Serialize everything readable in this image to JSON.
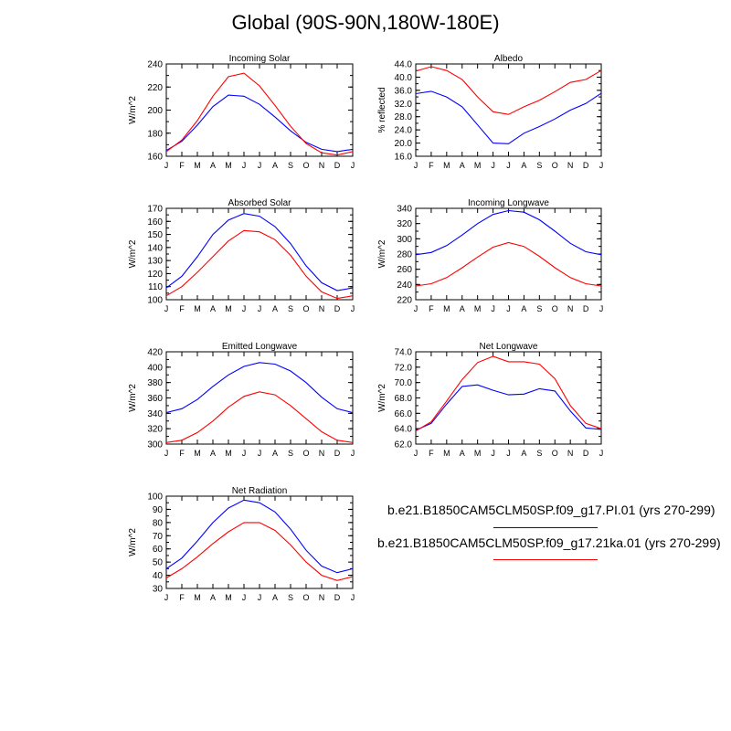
{
  "figure": {
    "title": "Global (90S-90N,180W-180E)"
  },
  "colors": {
    "case1": "#0000ff",
    "case2": "#ff0000"
  },
  "legend": {
    "items": [
      {
        "label": "b.e21.B1850CAM5CLM50SP.f09_g17.PI.01 (yrs 270-299)",
        "color": "#0000ff"
      },
      {
        "label": "b.e21.B1850CAM5CLM50SP.f09_g17.21ka.01 (yrs 270-299)",
        "color": "#ff0000"
      }
    ]
  },
  "chart_data": [
    {
      "type": "line",
      "title": "Incoming Solar",
      "ylabel": "W/m^2",
      "ylim": [
        160,
        240
      ],
      "yticks": [
        "160",
        "180",
        "200",
        "220",
        "240"
      ],
      "yminor": 10,
      "x": [
        "J",
        "F",
        "M",
        "A",
        "M",
        "J",
        "J",
        "A",
        "S",
        "O",
        "N",
        "D",
        "J"
      ],
      "series": [
        {
          "name": "b.e21.B1850CAM5CLM50SP.f09_g17.PI.01 (yrs 270-299)",
          "color": "#0000ff",
          "values": [
            165,
            173,
            187,
            203,
            213,
            212,
            205,
            194,
            182,
            172,
            166,
            164,
            166
          ]
        },
        {
          "name": "b.e21.B1850CAM5CLM50SP.f09_g17.21ka.01 (yrs 270-299)",
          "color": "#ff0000",
          "values": [
            164,
            174,
            191,
            212,
            229,
            232,
            221,
            204,
            186,
            171,
            163,
            161,
            164
          ]
        }
      ]
    },
    {
      "type": "line",
      "title": "Albedo",
      "ylabel": "% reflected",
      "ylim": [
        16,
        44
      ],
      "yticks": [
        "16.0",
        "20.0",
        "24.0",
        "28.0",
        "32.0",
        "36.0",
        "40.0",
        "44.0"
      ],
      "yminor": 2,
      "x": [
        "J",
        "F",
        "M",
        "A",
        "M",
        "J",
        "J",
        "A",
        "S",
        "O",
        "N",
        "D",
        "J"
      ],
      "series": [
        {
          "name": "b.e21.B1850CAM5CLM50SP.f09_g17.PI.01 (yrs 270-299)",
          "color": "#0000ff",
          "values": [
            35.0,
            35.7,
            34.0,
            31.0,
            25.5,
            20.0,
            19.8,
            23.0,
            25.0,
            27.3,
            30.0,
            32.0,
            35.1
          ]
        },
        {
          "name": "b.e21.B1850CAM5CLM50SP.f09_g17.21ka.01 (yrs 270-299)",
          "color": "#ff0000",
          "values": [
            41.8,
            43.2,
            42.0,
            39.3,
            34.0,
            29.5,
            28.7,
            31.0,
            33.0,
            35.6,
            38.4,
            39.3,
            42.0
          ]
        }
      ]
    },
    {
      "type": "line",
      "title": "Absorbed Solar",
      "ylabel": "W/m^2",
      "ylim": [
        100,
        170
      ],
      "yticks": [
        "100",
        "110",
        "120",
        "130",
        "140",
        "150",
        "160",
        "170"
      ],
      "yminor": 5,
      "x": [
        "J",
        "F",
        "M",
        "A",
        "M",
        "J",
        "J",
        "A",
        "S",
        "O",
        "N",
        "D",
        "J"
      ],
      "series": [
        {
          "name": "b.e21.B1850CAM5CLM50SP.f09_g17.PI.01 (yrs 270-299)",
          "color": "#0000ff",
          "values": [
            109,
            118,
            133,
            150,
            161,
            166,
            164,
            156,
            143,
            126,
            113,
            107,
            109
          ]
        },
        {
          "name": "b.e21.B1850CAM5CLM50SP.f09_g17.21ka.01 (yrs 270-299)",
          "color": "#ff0000",
          "values": [
            103,
            110,
            121,
            133,
            145,
            153,
            152,
            146,
            134,
            118,
            106,
            101,
            103
          ]
        }
      ]
    },
    {
      "type": "line",
      "title": "Incoming Longwave",
      "ylabel": "W/m^2",
      "ylim": [
        220,
        340
      ],
      "yticks": [
        "220",
        "240",
        "260",
        "280",
        "300",
        "320",
        "340"
      ],
      "yminor": 10,
      "x": [
        "J",
        "F",
        "M",
        "A",
        "M",
        "J",
        "J",
        "A",
        "S",
        "O",
        "N",
        "D",
        "J"
      ],
      "series": [
        {
          "name": "b.e21.B1850CAM5CLM50SP.f09_g17.PI.01 (yrs 270-299)",
          "color": "#0000ff",
          "values": [
            279,
            282,
            291,
            305,
            320,
            332,
            337,
            335,
            325,
            310,
            294,
            283,
            279
          ]
        },
        {
          "name": "b.e21.B1850CAM5CLM50SP.f09_g17.21ka.01 (yrs 270-299)",
          "color": "#ff0000",
          "values": [
            238,
            241,
            249,
            262,
            276,
            289,
            295,
            290,
            277,
            262,
            249,
            241,
            238
          ]
        }
      ]
    },
    {
      "type": "line",
      "title": "Emitted Longwave",
      "ylabel": "W/m^2",
      "ylim": [
        300,
        420
      ],
      "yticks": [
        "300",
        "320",
        "340",
        "360",
        "380",
        "400",
        "420"
      ],
      "yminor": 10,
      "x": [
        "J",
        "F",
        "M",
        "A",
        "M",
        "J",
        "J",
        "A",
        "S",
        "O",
        "N",
        "D",
        "J"
      ],
      "series": [
        {
          "name": "b.e21.B1850CAM5CLM50SP.f09_g17.PI.01 (yrs 270-299)",
          "color": "#0000ff",
          "values": [
            341,
            346,
            358,
            375,
            390,
            401,
            406,
            404,
            395,
            380,
            361,
            346,
            341
          ]
        },
        {
          "name": "b.e21.B1850CAM5CLM50SP.f09_g17.21ka.01 (yrs 270-299)",
          "color": "#ff0000",
          "values": [
            302,
            305,
            315,
            330,
            348,
            362,
            368,
            364,
            350,
            333,
            316,
            305,
            302
          ]
        }
      ]
    },
    {
      "type": "line",
      "title": "Net Longwave",
      "ylabel": "W/m^2",
      "ylim": [
        62,
        74
      ],
      "yticks": [
        "62.0",
        "64.0",
        "66.0",
        "68.0",
        "70.0",
        "72.0",
        "74.0"
      ],
      "yminor": 1,
      "x": [
        "J",
        "F",
        "M",
        "A",
        "M",
        "J",
        "J",
        "A",
        "S",
        "O",
        "N",
        "D",
        "J"
      ],
      "series": [
        {
          "name": "b.e21.B1850CAM5CLM50SP.f09_g17.PI.01 (yrs 270-299)",
          "color": "#0000ff",
          "values": [
            63.8,
            64.7,
            67.2,
            69.5,
            69.7,
            69.0,
            68.4,
            68.5,
            69.2,
            68.9,
            66.3,
            64.1,
            63.9
          ]
        },
        {
          "name": "b.e21.B1850CAM5CLM50SP.f09_g17.21ka.01 (yrs 270-299)",
          "color": "#ff0000",
          "values": [
            63.7,
            64.9,
            67.6,
            70.4,
            72.6,
            73.4,
            72.7,
            72.7,
            72.4,
            70.5,
            67.0,
            64.7,
            64.0
          ]
        }
      ]
    },
    {
      "type": "line",
      "title": "Net Radiation",
      "ylabel": "W/m^2",
      "ylim": [
        30,
        100
      ],
      "yticks": [
        "30",
        "40",
        "50",
        "60",
        "70",
        "80",
        "90",
        "100"
      ],
      "yminor": 5,
      "x": [
        "J",
        "F",
        "M",
        "A",
        "M",
        "J",
        "J",
        "A",
        "S",
        "O",
        "N",
        "D",
        "J"
      ],
      "series": [
        {
          "name": "b.e21.B1850CAM5CLM50SP.f09_g17.PI.01 (yrs 270-299)",
          "color": "#0000ff",
          "values": [
            45,
            53,
            66,
            80,
            91,
            97,
            95,
            88,
            75,
            59,
            47,
            42,
            45
          ]
        },
        {
          "name": "b.e21.B1850CAM5CLM50SP.f09_g17.21ka.01 (yrs 270-299)",
          "color": "#ff0000",
          "values": [
            38,
            45,
            54,
            64,
            73,
            80,
            80,
            74,
            63,
            50,
            40,
            36,
            39
          ]
        }
      ]
    }
  ]
}
